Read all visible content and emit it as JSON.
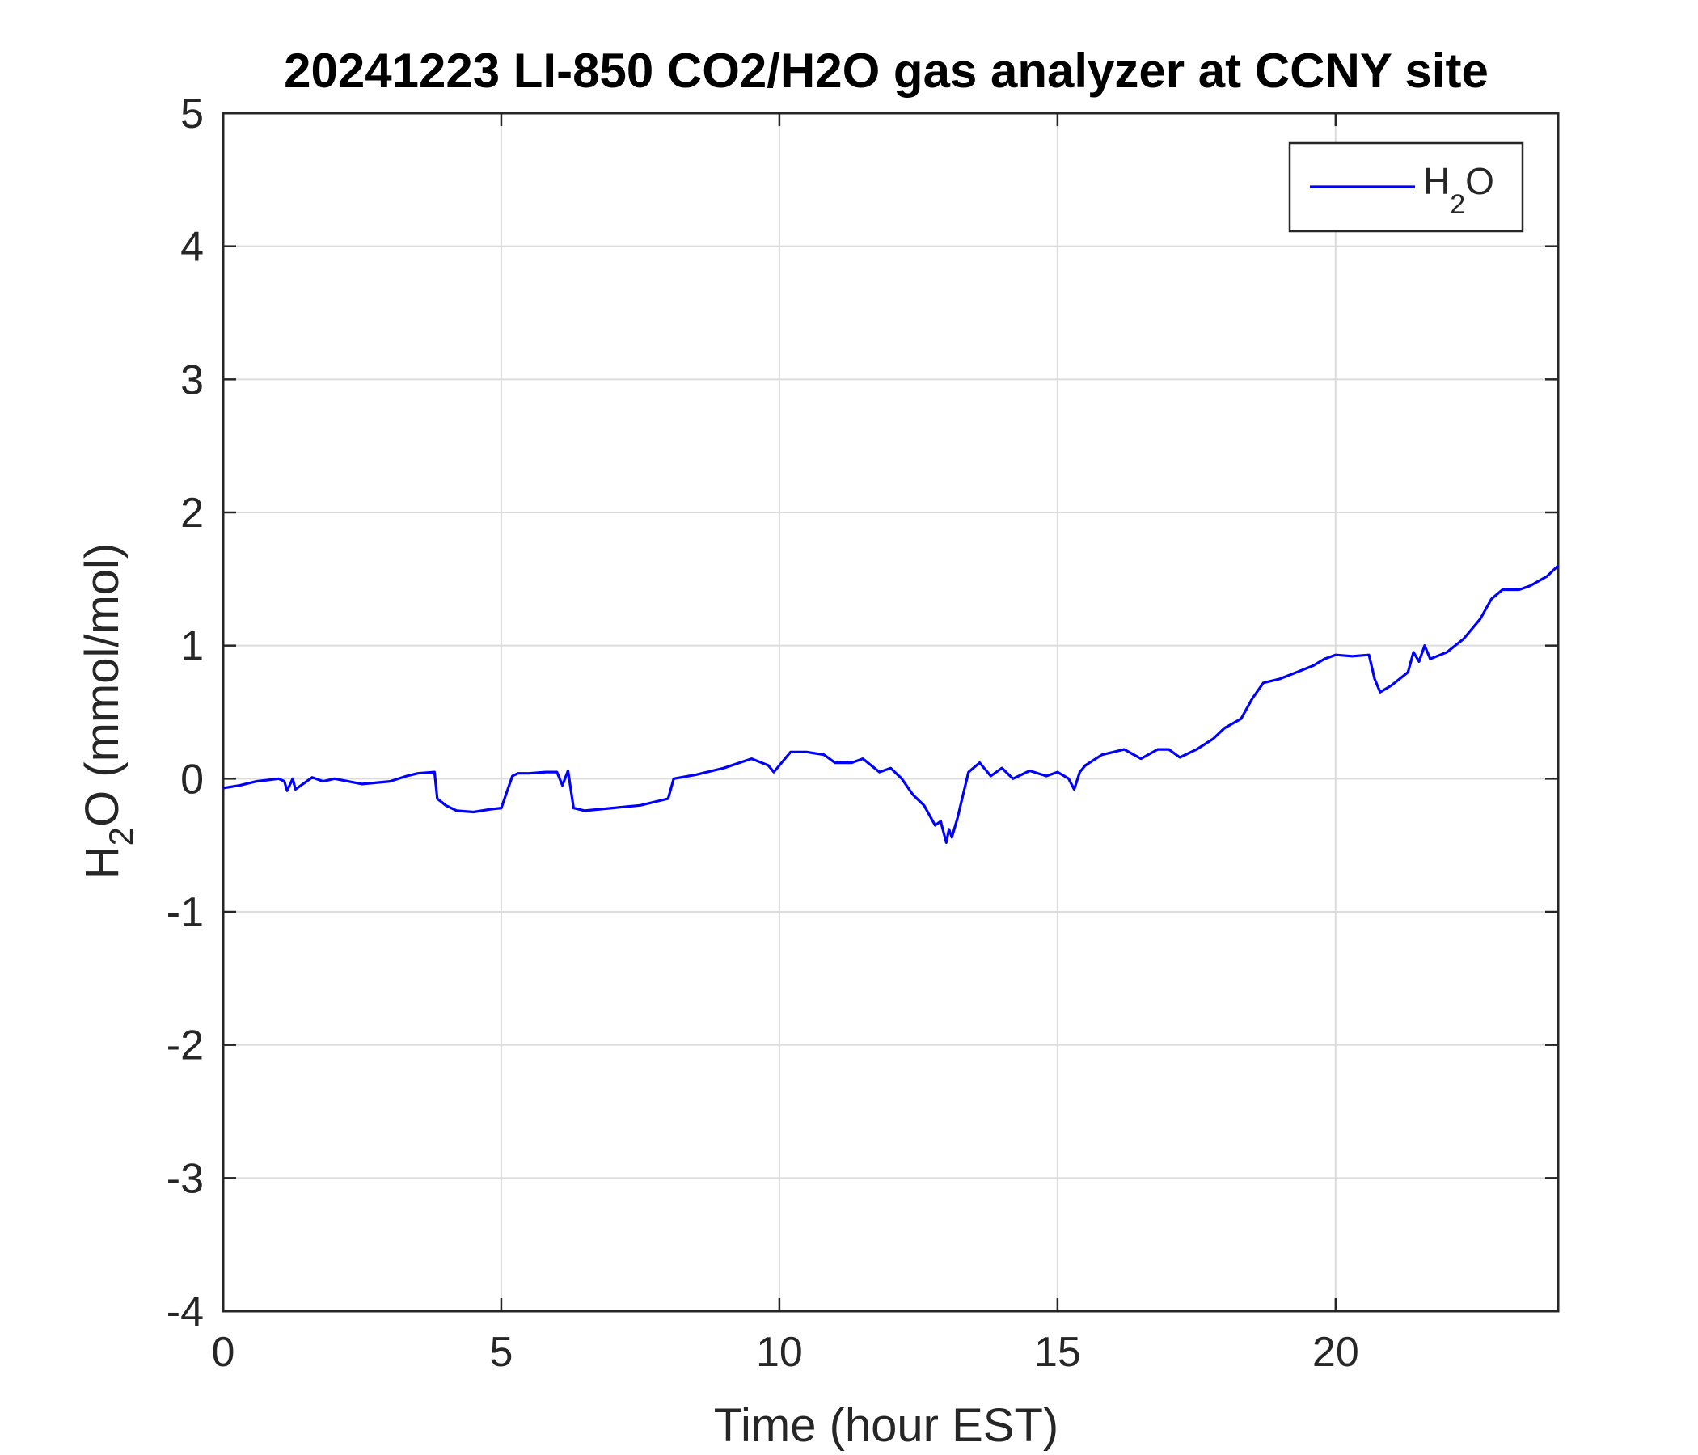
{
  "chart_data": {
    "type": "line",
    "title": "20241223 LI-850 CO2/H2O gas analyzer at CCNY site",
    "xlabel": "Time (hour EST)",
    "ylabel": {
      "main": "H",
      "sub": "2",
      "rest": "O (mmol/mol)"
    },
    "xlim": [
      0,
      24
    ],
    "ylim": [
      -4,
      5
    ],
    "xticks": [
      0,
      5,
      10,
      15,
      20
    ],
    "yticks": [
      -4,
      -3,
      -2,
      -1,
      0,
      1,
      2,
      3,
      4,
      5
    ],
    "grid": true,
    "legend_position": "top-right",
    "colors": {
      "series": "#0000ff",
      "grid": "#dcdcdc",
      "axes": "#262626"
    },
    "series": [
      {
        "name": {
          "main": "H",
          "sub": "2",
          "rest": "O"
        },
        "x": [
          0,
          0.3,
          0.6,
          1.0,
          1.1,
          1.15,
          1.25,
          1.3,
          1.6,
          1.8,
          2.0,
          2.5,
          3.0,
          3.3,
          3.5,
          3.8,
          3.85,
          4.0,
          4.2,
          4.5,
          4.8,
          5.0,
          5.1,
          5.2,
          5.3,
          5.5,
          5.8,
          6.0,
          6.1,
          6.2,
          6.3,
          6.5,
          7.0,
          7.5,
          8.0,
          8.1,
          8.5,
          9.0,
          9.5,
          9.8,
          9.9,
          10.0,
          10.2,
          10.5,
          10.8,
          11.0,
          11.3,
          11.5,
          11.8,
          12.0,
          12.2,
          12.4,
          12.6,
          12.8,
          12.9,
          13.0,
          13.05,
          13.1,
          13.2,
          13.4,
          13.6,
          13.8,
          14.0,
          14.2,
          14.5,
          14.8,
          15.0,
          15.2,
          15.3,
          15.4,
          15.5,
          15.8,
          16.0,
          16.2,
          16.5,
          16.8,
          17.0,
          17.2,
          17.5,
          17.8,
          18.0,
          18.3,
          18.5,
          18.7,
          19.0,
          19.3,
          19.6,
          19.8,
          20.0,
          20.3,
          20.6,
          20.7,
          20.8,
          21.0,
          21.3,
          21.4,
          21.5,
          21.6,
          21.7,
          22.0,
          22.3,
          22.6,
          22.8,
          23.0,
          23.3,
          23.5,
          23.8,
          24.0
        ],
        "values": [
          -0.07,
          -0.05,
          -0.02,
          0.0,
          -0.02,
          -0.09,
          0.0,
          -0.08,
          0.01,
          -0.02,
          0.0,
          -0.04,
          -0.02,
          0.02,
          0.04,
          0.05,
          -0.15,
          -0.2,
          -0.24,
          -0.25,
          -0.23,
          -0.22,
          -0.1,
          0.02,
          0.04,
          0.04,
          0.05,
          0.05,
          -0.05,
          0.06,
          -0.22,
          -0.24,
          -0.22,
          -0.2,
          -0.15,
          0.0,
          0.03,
          0.08,
          0.15,
          0.1,
          0.05,
          0.1,
          0.2,
          0.2,
          0.18,
          0.12,
          0.12,
          0.15,
          0.05,
          0.08,
          0.0,
          -0.12,
          -0.2,
          -0.35,
          -0.32,
          -0.48,
          -0.38,
          -0.44,
          -0.3,
          0.05,
          0.12,
          0.02,
          0.08,
          0.0,
          0.06,
          0.02,
          0.05,
          0.0,
          -0.08,
          0.05,
          0.1,
          0.18,
          0.2,
          0.22,
          0.15,
          0.22,
          0.22,
          0.16,
          0.22,
          0.3,
          0.38,
          0.45,
          0.6,
          0.72,
          0.75,
          0.8,
          0.85,
          0.9,
          0.93,
          0.92,
          0.93,
          0.75,
          0.65,
          0.7,
          0.8,
          0.95,
          0.88,
          1.0,
          0.9,
          0.95,
          1.05,
          1.2,
          1.35,
          1.42,
          1.42,
          1.45,
          1.52,
          1.6
        ]
      }
    ]
  }
}
